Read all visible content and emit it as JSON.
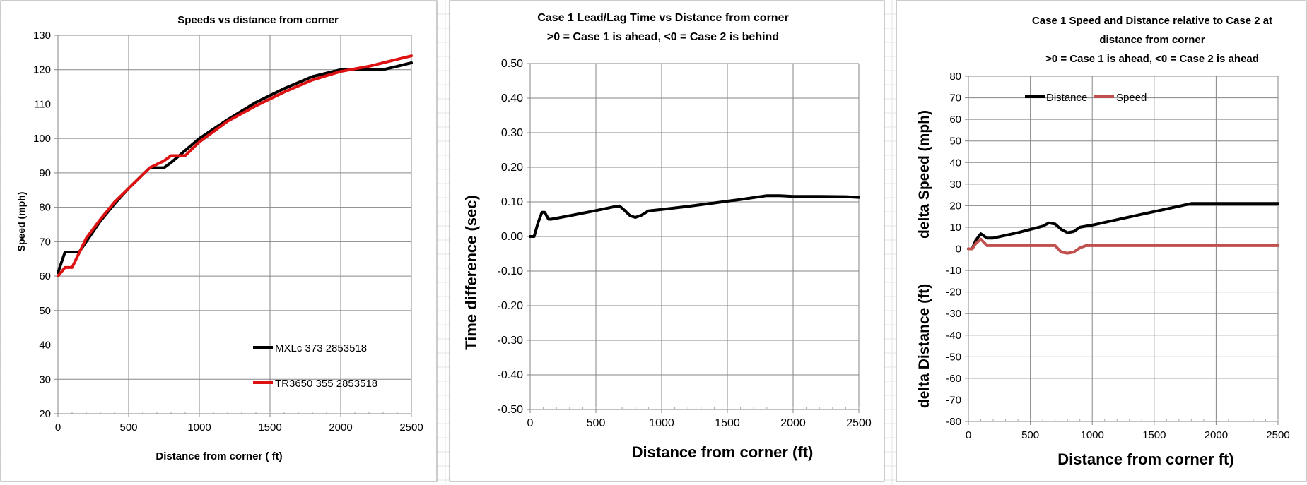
{
  "charts": [
    {
      "title_lines": [
        "Speeds vs distance  from corner"
      ],
      "xlabel": "Distance from corner ( ft)",
      "ylabel": "Speed  (mph)",
      "xticks": [
        "0",
        "500",
        "1000",
        "1500",
        "2000",
        "2500"
      ],
      "yticks": [
        "130",
        "120",
        "110",
        "100",
        "90",
        "80",
        "70",
        "60",
        "50",
        "40",
        "30",
        "20"
      ],
      "legend": [
        "MXLc 373 2853518",
        "TR3650 355 2853518"
      ]
    },
    {
      "title_lines": [
        "Case 1 Lead/Lag Time vs Distance  from corner",
        ">0 = Case 1 is ahead,  <0 = Case 2 is behind"
      ],
      "xlabel": "Distance from corner  (ft)",
      "ylabel": "Time difference  (sec)",
      "xticks": [
        "0",
        "500",
        "1000",
        "1500",
        "2000",
        "2500"
      ],
      "yticks": [
        "0.50",
        "0.40",
        "0.30",
        "0.20",
        "0.10",
        "0.00",
        "-0.10",
        "-0.20",
        "-0.30",
        "-0.40",
        "-0.50"
      ]
    },
    {
      "title_lines": [
        "Case 1 Speed and Distance  relative to Case 2 at",
        "distance from corner",
        ">0 = Case 1 is ahead,  <0 = Case 2 is ahead"
      ],
      "xlabel": "Distance from corner  ft)",
      "ylabel_top": "delta Speed  (mph)",
      "ylabel_bottom": "delta Distance (ft)",
      "xticks": [
        "0",
        "500",
        "1000",
        "1500",
        "2000",
        "2500"
      ],
      "yticks": [
        "80",
        "70",
        "60",
        "50",
        "40",
        "30",
        "20",
        "10",
        "0",
        "-10",
        "-20",
        "-30",
        "-40",
        "-50",
        "-60",
        "-70",
        "-80"
      ],
      "legend": [
        "Distance",
        "Speed"
      ]
    }
  ],
  "chart_data": [
    {
      "type": "line",
      "title": "Speeds vs distance  from corner",
      "xlabel": "Distance from corner ( ft)",
      "ylabel": "Speed  (mph)",
      "xlim": [
        0,
        2500
      ],
      "ylim": [
        20,
        130
      ],
      "grid": true,
      "legend_position": "bottom-right",
      "series": [
        {
          "name": "MXLc 373 2853518",
          "color": "#000000",
          "x": [
            0,
            50,
            100,
            150,
            200,
            300,
            400,
            500,
            600,
            650,
            700,
            750,
            800,
            900,
            1000,
            1200,
            1400,
            1600,
            1800,
            2000,
            2100,
            2200,
            2300,
            2400,
            2500
          ],
          "y": [
            61,
            67,
            67,
            67,
            70,
            76,
            81,
            85.5,
            89.5,
            91.5,
            91.5,
            91.5,
            93,
            96.5,
            100,
            105.5,
            110.5,
            114.5,
            118,
            120,
            120,
            120,
            120,
            121,
            122
          ]
        },
        {
          "name": "TR3650 355 2853518",
          "color": "#dd1111",
          "x": [
            0,
            50,
            100,
            200,
            300,
            400,
            500,
            600,
            650,
            700,
            750,
            800,
            850,
            900,
            1000,
            1200,
            1400,
            1600,
            1800,
            2000,
            2200,
            2400,
            2500
          ],
          "y": [
            60,
            62.5,
            62.5,
            71,
            76.5,
            81.5,
            85.5,
            89.5,
            91.5,
            92.5,
            93.5,
            95,
            95,
            95,
            99,
            105,
            109.5,
            113.5,
            117,
            119.5,
            121,
            123,
            124
          ]
        }
      ]
    },
    {
      "type": "line",
      "title": "Case 1 Lead/Lag Time vs Distance  from corner",
      "subtitle": ">0 = Case 1 is ahead,  <0 = Case 2 is behind",
      "xlabel": "Distance from corner  (ft)",
      "ylabel": "Time difference  (sec)",
      "xlim": [
        0,
        2500
      ],
      "ylim": [
        -0.5,
        0.5
      ],
      "grid": true,
      "series": [
        {
          "color": "#000000",
          "x": [
            0,
            30,
            60,
            90,
            110,
            140,
            160,
            300,
            500,
            650,
            680,
            720,
            760,
            800,
            850,
            900,
            1000,
            1200,
            1400,
            1600,
            1800,
            1900,
            2000,
            2200,
            2400,
            2500
          ],
          "y": [
            0,
            0,
            0.04,
            0.07,
            0.07,
            0.05,
            0.05,
            0.06,
            0.075,
            0.087,
            0.088,
            0.075,
            0.06,
            0.055,
            0.062,
            0.074,
            0.078,
            0.087,
            0.097,
            0.107,
            0.118,
            0.118,
            0.116,
            0.116,
            0.115,
            0.113
          ]
        }
      ]
    },
    {
      "type": "line",
      "title": "Case 1 Speed and Distance  relative to Case 2 at distance from corner",
      "subtitle": ">0 = Case 1 is ahead,  <0 = Case 2 is ahead",
      "xlabel": "Distance from corner  ft)",
      "ylabel": [
        "delta Speed  (mph)",
        "delta Distance (ft)"
      ],
      "xlim": [
        0,
        2500
      ],
      "ylim": [
        -80,
        80
      ],
      "grid": true,
      "legend_position": "top-left",
      "series": [
        {
          "name": "Distance",
          "color": "#000000",
          "x": [
            0,
            30,
            60,
            100,
            150,
            200,
            400,
            600,
            650,
            700,
            750,
            800,
            850,
            900,
            1000,
            1200,
            1400,
            1600,
            1800,
            2000,
            2200,
            2500
          ],
          "y": [
            0,
            0,
            4,
            7,
            5,
            5,
            7.5,
            10.5,
            12,
            11.5,
            9,
            7.5,
            8,
            10,
            11,
            13.5,
            16,
            18.5,
            21,
            21,
            21,
            21
          ]
        },
        {
          "name": "Speed",
          "color": "#c0504d",
          "x": [
            0,
            30,
            60,
            100,
            150,
            200,
            400,
            600,
            700,
            750,
            800,
            850,
            900,
            950,
            1000,
            1500,
            2000,
            2500
          ],
          "y": [
            0,
            0,
            2.5,
            4.5,
            1.5,
            1.5,
            1.5,
            1.5,
            1.5,
            -1.5,
            -2,
            -1.5,
            0.5,
            1.5,
            1.5,
            1.5,
            1.5,
            1.5
          ]
        }
      ]
    }
  ]
}
